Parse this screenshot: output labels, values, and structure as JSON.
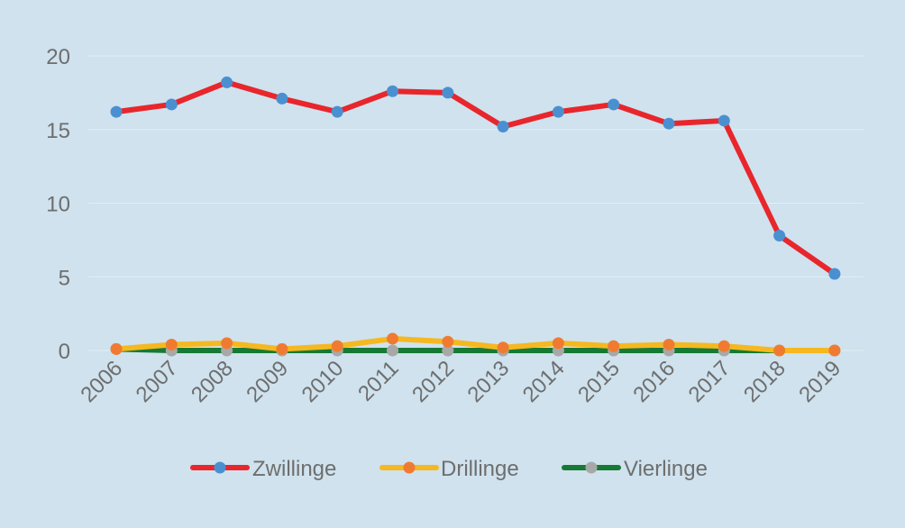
{
  "chart_data": {
    "type": "line",
    "title": "",
    "xlabel": "",
    "ylabel": "",
    "x": [
      "2006",
      "2007",
      "2008",
      "2009",
      "2010",
      "2011",
      "2012",
      "2013",
      "2014",
      "2015",
      "2016",
      "2017",
      "2018",
      "2019"
    ],
    "y_ticks": [
      "0",
      "5",
      "10",
      "15",
      "20"
    ],
    "ylim": [
      0,
      20
    ],
    "grid": true,
    "legend_position": "bottom",
    "series": [
      {
        "name": "Zwillinge",
        "line_color": "#e8262b",
        "marker_color": "#4a90d0",
        "values": [
          16.2,
          16.7,
          18.2,
          17.1,
          16.2,
          17.6,
          17.5,
          15.2,
          16.2,
          16.7,
          15.4,
          15.6,
          7.8,
          5.2
        ]
      },
      {
        "name": "Drillinge",
        "line_color": "#f5b820",
        "marker_color": "#f07b30",
        "values": [
          0.1,
          0.4,
          0.5,
          0.1,
          0.3,
          0.8,
          0.6,
          0.2,
          0.5,
          0.3,
          0.4,
          0.3,
          0.0,
          0.0
        ]
      },
      {
        "name": "Vierlinge",
        "line_color": "#167a34",
        "marker_color": "#a8a8a8",
        "values": [
          0.1,
          0.0,
          0.0,
          0.0,
          0.0,
          0.0,
          0.0,
          0.0,
          0.0,
          0.0,
          0.0,
          0.0,
          0.0,
          0.0
        ]
      }
    ]
  }
}
